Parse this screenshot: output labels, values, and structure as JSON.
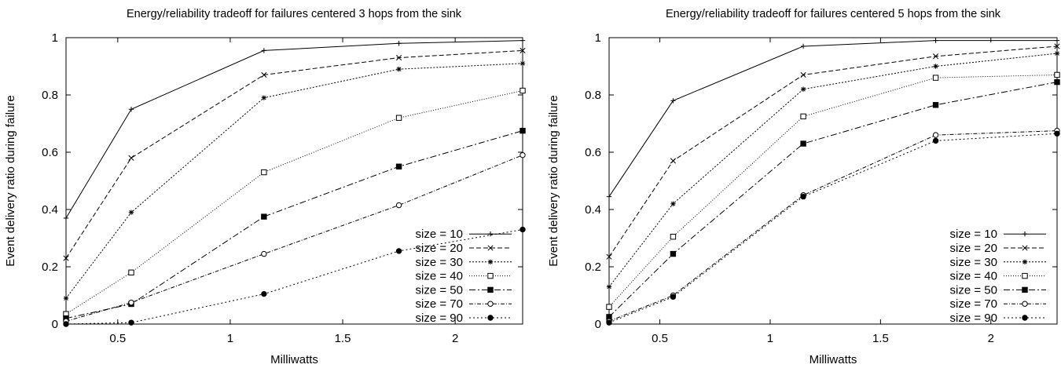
{
  "chart_data": [
    {
      "type": "line",
      "title": "Energy/reliability tradeoff for failures centered 3 hops from the sink",
      "xlabel": "Milliwatts",
      "ylabel": "Event delivery ratio during failure",
      "xlim": [
        0.27,
        2.3
      ],
      "ylim": [
        0,
        1
      ],
      "xticks": [
        0.5,
        1,
        1.5,
        2
      ],
      "xtick_labels": [
        "0.5",
        "1",
        "1.5",
        "2"
      ],
      "yticks": [
        0,
        0.2,
        0.4,
        0.6,
        0.8,
        1
      ],
      "ytick_labels": [
        "0",
        "0.2",
        "0.4",
        "0.6",
        "0.8",
        "1"
      ],
      "x": [
        0.27,
        0.56,
        1.15,
        1.75,
        2.3
      ],
      "legend_position": "bottom-right",
      "grid": false,
      "series": [
        {
          "name": "size = 10",
          "marker": "plus",
          "dash": "",
          "values": [
            0.37,
            0.75,
            0.955,
            0.98,
            0.99
          ]
        },
        {
          "name": "size = 20",
          "marker": "cross",
          "dash": "6,3",
          "values": [
            0.23,
            0.58,
            0.87,
            0.93,
            0.955
          ]
        },
        {
          "name": "size = 30",
          "marker": "star",
          "dash": "2,2",
          "values": [
            0.09,
            0.39,
            0.79,
            0.89,
            0.91
          ]
        },
        {
          "name": "size = 40",
          "marker": "square-open",
          "dash": "1,2",
          "values": [
            0.035,
            0.18,
            0.53,
            0.72,
            0.815
          ]
        },
        {
          "name": "size = 50",
          "marker": "square-filled",
          "dash": "8,3,2,3",
          "values": [
            0.02,
            0.07,
            0.375,
            0.55,
            0.675
          ]
        },
        {
          "name": "size = 70",
          "marker": "circle-open",
          "dash": "5,2,1,2",
          "values": [
            0.01,
            0.075,
            0.245,
            0.415,
            0.59
          ]
        },
        {
          "name": "size = 90",
          "marker": "circle-filled",
          "dash": "2,3",
          "values": [
            0.0,
            0.005,
            0.105,
            0.255,
            0.33
          ]
        }
      ]
    },
    {
      "type": "line",
      "title": "Energy/reliability tradeoff for failures centered 5 hops from the sink",
      "xlabel": "Milliwatts",
      "ylabel": "Event delivery ratio during failure",
      "xlim": [
        0.27,
        2.3
      ],
      "ylim": [
        0,
        1
      ],
      "xticks": [
        0.5,
        1,
        1.5,
        2
      ],
      "xtick_labels": [
        "0.5",
        "1",
        "1.5",
        "2"
      ],
      "yticks": [
        0,
        0.2,
        0.4,
        0.6,
        0.8,
        1
      ],
      "ytick_labels": [
        "0",
        "0.2",
        "0.4",
        "0.6",
        "0.8",
        "1"
      ],
      "x": [
        0.27,
        0.56,
        1.15,
        1.75,
        2.3
      ],
      "legend_position": "bottom-right",
      "grid": false,
      "series": [
        {
          "name": "size = 10",
          "marker": "plus",
          "dash": "",
          "values": [
            0.445,
            0.78,
            0.97,
            0.99,
            0.99
          ]
        },
        {
          "name": "size = 20",
          "marker": "cross",
          "dash": "6,3",
          "values": [
            0.235,
            0.57,
            0.87,
            0.935,
            0.97
          ]
        },
        {
          "name": "size = 30",
          "marker": "star",
          "dash": "2,2",
          "values": [
            0.13,
            0.42,
            0.82,
            0.9,
            0.945
          ]
        },
        {
          "name": "size = 40",
          "marker": "square-open",
          "dash": "1,2",
          "values": [
            0.06,
            0.305,
            0.725,
            0.86,
            0.87
          ]
        },
        {
          "name": "size = 50",
          "marker": "square-filled",
          "dash": "8,3,2,3",
          "values": [
            0.025,
            0.245,
            0.63,
            0.765,
            0.845
          ]
        },
        {
          "name": "size = 70",
          "marker": "circle-open",
          "dash": "5,2,1,2",
          "values": [
            0.01,
            0.1,
            0.45,
            0.66,
            0.675
          ]
        },
        {
          "name": "size = 90",
          "marker": "circle-filled",
          "dash": "2,3",
          "values": [
            0.005,
            0.095,
            0.445,
            0.64,
            0.665
          ]
        }
      ]
    }
  ]
}
